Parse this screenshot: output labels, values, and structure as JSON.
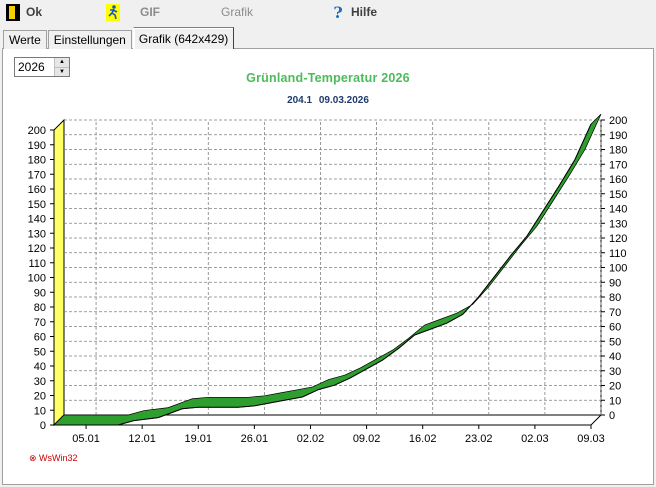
{
  "toolbar": {
    "ok_label": "Ok",
    "gif_label": "GIF",
    "grafik_label": "Grafik",
    "hilfe_label": "Hilfe"
  },
  "tabs": [
    {
      "label": "Werte"
    },
    {
      "label": "Einstellungen"
    },
    {
      "label": "Grafik (642x429)",
      "active": true
    }
  ],
  "year_spinner": {
    "value": "2026"
  },
  "watermark": "⊗ WsWin32",
  "colors": {
    "title": "#4cbb5a",
    "subtitle": "#1f3a6e",
    "band_fill": "#2e9e2e",
    "left_wall": "#ffff66",
    "grid": "#808080"
  },
  "chart_data": {
    "type": "area",
    "title": "Grünland-Temperatur  2026",
    "subtitle": "204.1  09.03.2026",
    "xlabel": "",
    "ylabel": "",
    "ylim": [
      0,
      200
    ],
    "y_ticks_left": [
      0,
      10,
      20,
      30,
      40,
      50,
      60,
      70,
      80,
      90,
      100,
      110,
      120,
      130,
      140,
      150,
      160,
      170,
      180,
      190,
      200
    ],
    "y_ticks_right": [
      0,
      10,
      20,
      30,
      40,
      50,
      60,
      70,
      80,
      90,
      100,
      110,
      120,
      130,
      140,
      150,
      160,
      170,
      180,
      190,
      200
    ],
    "x_range_days": [
      1,
      68
    ],
    "x_ticks": [
      {
        "label": "05.01",
        "day": 5
      },
      {
        "label": "12.01",
        "day": 12
      },
      {
        "label": "19.01",
        "day": 19
      },
      {
        "label": "26.01",
        "day": 26
      },
      {
        "label": "02.02",
        "day": 33
      },
      {
        "label": "09.02",
        "day": 40
      },
      {
        "label": "16.02",
        "day": 47
      },
      {
        "label": "23.02",
        "day": 54
      },
      {
        "label": "02.03",
        "day": 61
      },
      {
        "label": "09.03",
        "day": 68
      }
    ],
    "grid": true,
    "series": [
      {
        "x": [
          1,
          5,
          8,
          9,
          11,
          14,
          16,
          17,
          19,
          22,
          24,
          26,
          28,
          30,
          32,
          34,
          36,
          38,
          40,
          42,
          44,
          46,
          48,
          50,
          52,
          54,
          56,
          58,
          60,
          62,
          64,
          66,
          68
        ],
        "y": [
          0,
          0,
          0,
          0,
          3,
          5,
          9,
          11,
          12,
          12,
          12,
          13,
          15,
          17,
          19,
          24,
          27,
          32,
          38,
          44,
          52,
          61,
          65,
          69,
          75,
          87,
          101,
          115,
          128,
          145,
          162,
          180,
          204
        ]
      }
    ]
  }
}
